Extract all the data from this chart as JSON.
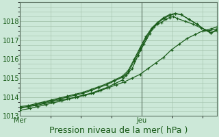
{
  "bg_color": "#cce8d8",
  "grid_color": "#a0c0a8",
  "line_color": "#1a5c1a",
  "ylim": [
    1013.0,
    1019.0
  ],
  "yticks": [
    1013,
    1014,
    1015,
    1016,
    1017,
    1018
  ],
  "xlabel": "Pression niveau de la mer( hPa )",
  "xlabel_fontsize": 9,
  "tick_fontsize": 7,
  "xtick_labels": [
    "Mer",
    "Jeu"
  ],
  "xtick_positions": [
    0.0,
    0.62
  ],
  "vline_x": [
    0.0,
    0.62
  ],
  "series1_x": [
    0.0,
    0.05,
    0.09,
    0.13,
    0.17,
    0.21,
    0.25,
    0.29,
    0.33,
    0.37,
    0.41,
    0.45,
    0.49,
    0.53,
    0.57,
    0.61,
    0.65,
    0.69,
    0.73,
    0.77,
    0.81,
    0.85,
    0.89,
    0.93,
    0.97,
    1.0
  ],
  "series1_y": [
    1013.3,
    1013.4,
    1013.5,
    1013.6,
    1013.7,
    1013.8,
    1013.9,
    1014.0,
    1014.1,
    1014.2,
    1014.35,
    1014.5,
    1014.65,
    1014.8,
    1015.0,
    1015.2,
    1015.5,
    1015.8,
    1016.1,
    1016.5,
    1016.8,
    1017.1,
    1017.3,
    1017.5,
    1017.6,
    1017.7
  ],
  "series2_x": [
    0.0,
    0.04,
    0.08,
    0.12,
    0.16,
    0.2,
    0.24,
    0.28,
    0.32,
    0.36,
    0.4,
    0.44,
    0.48,
    0.52,
    0.54,
    0.57,
    0.6,
    0.63,
    0.66,
    0.68,
    0.7,
    0.72,
    0.74,
    0.76,
    0.78,
    0.8,
    0.84,
    0.88,
    0.92,
    0.96,
    1.0
  ],
  "series2_y": [
    1013.4,
    1013.5,
    1013.55,
    1013.65,
    1013.75,
    1013.85,
    1013.9,
    1014.0,
    1014.1,
    1014.2,
    1014.35,
    1014.5,
    1014.7,
    1014.9,
    1015.15,
    1015.5,
    1016.2,
    1016.8,
    1017.35,
    1017.7,
    1017.85,
    1017.95,
    1018.1,
    1018.2,
    1018.25,
    1018.15,
    1018.0,
    1017.85,
    1017.65,
    1017.5,
    1017.6
  ],
  "series3_x": [
    0.0,
    0.04,
    0.08,
    0.12,
    0.16,
    0.2,
    0.24,
    0.28,
    0.32,
    0.36,
    0.4,
    0.44,
    0.48,
    0.52,
    0.55,
    0.58,
    0.61,
    0.64,
    0.67,
    0.7,
    0.73,
    0.76,
    0.79,
    0.82,
    0.86,
    0.9,
    0.94,
    0.97,
    1.0
  ],
  "series3_y": [
    1013.5,
    1013.55,
    1013.65,
    1013.75,
    1013.85,
    1013.95,
    1014.05,
    1014.15,
    1014.25,
    1014.4,
    1014.55,
    1014.7,
    1014.9,
    1015.1,
    1015.4,
    1016.0,
    1016.6,
    1017.2,
    1017.65,
    1017.95,
    1018.2,
    1018.35,
    1018.42,
    1018.35,
    1018.1,
    1017.85,
    1017.55,
    1017.4,
    1017.55
  ],
  "series4_x": [
    0.0,
    0.04,
    0.08,
    0.12,
    0.16,
    0.2,
    0.24,
    0.28,
    0.32,
    0.36,
    0.4,
    0.44,
    0.48,
    0.52,
    0.55,
    0.58,
    0.61,
    0.64,
    0.67,
    0.7,
    0.73,
    0.76,
    0.79,
    0.82,
    0.86,
    0.9,
    0.94,
    0.97,
    1.0
  ],
  "series4_y": [
    1013.45,
    1013.5,
    1013.6,
    1013.7,
    1013.8,
    1013.9,
    1014.0,
    1014.1,
    1014.2,
    1014.35,
    1014.5,
    1014.65,
    1014.85,
    1015.05,
    1015.3,
    1015.9,
    1016.5,
    1017.1,
    1017.6,
    1017.9,
    1018.15,
    1018.3,
    1018.4,
    1018.35,
    1018.1,
    1017.85,
    1017.55,
    1017.38,
    1017.5
  ]
}
